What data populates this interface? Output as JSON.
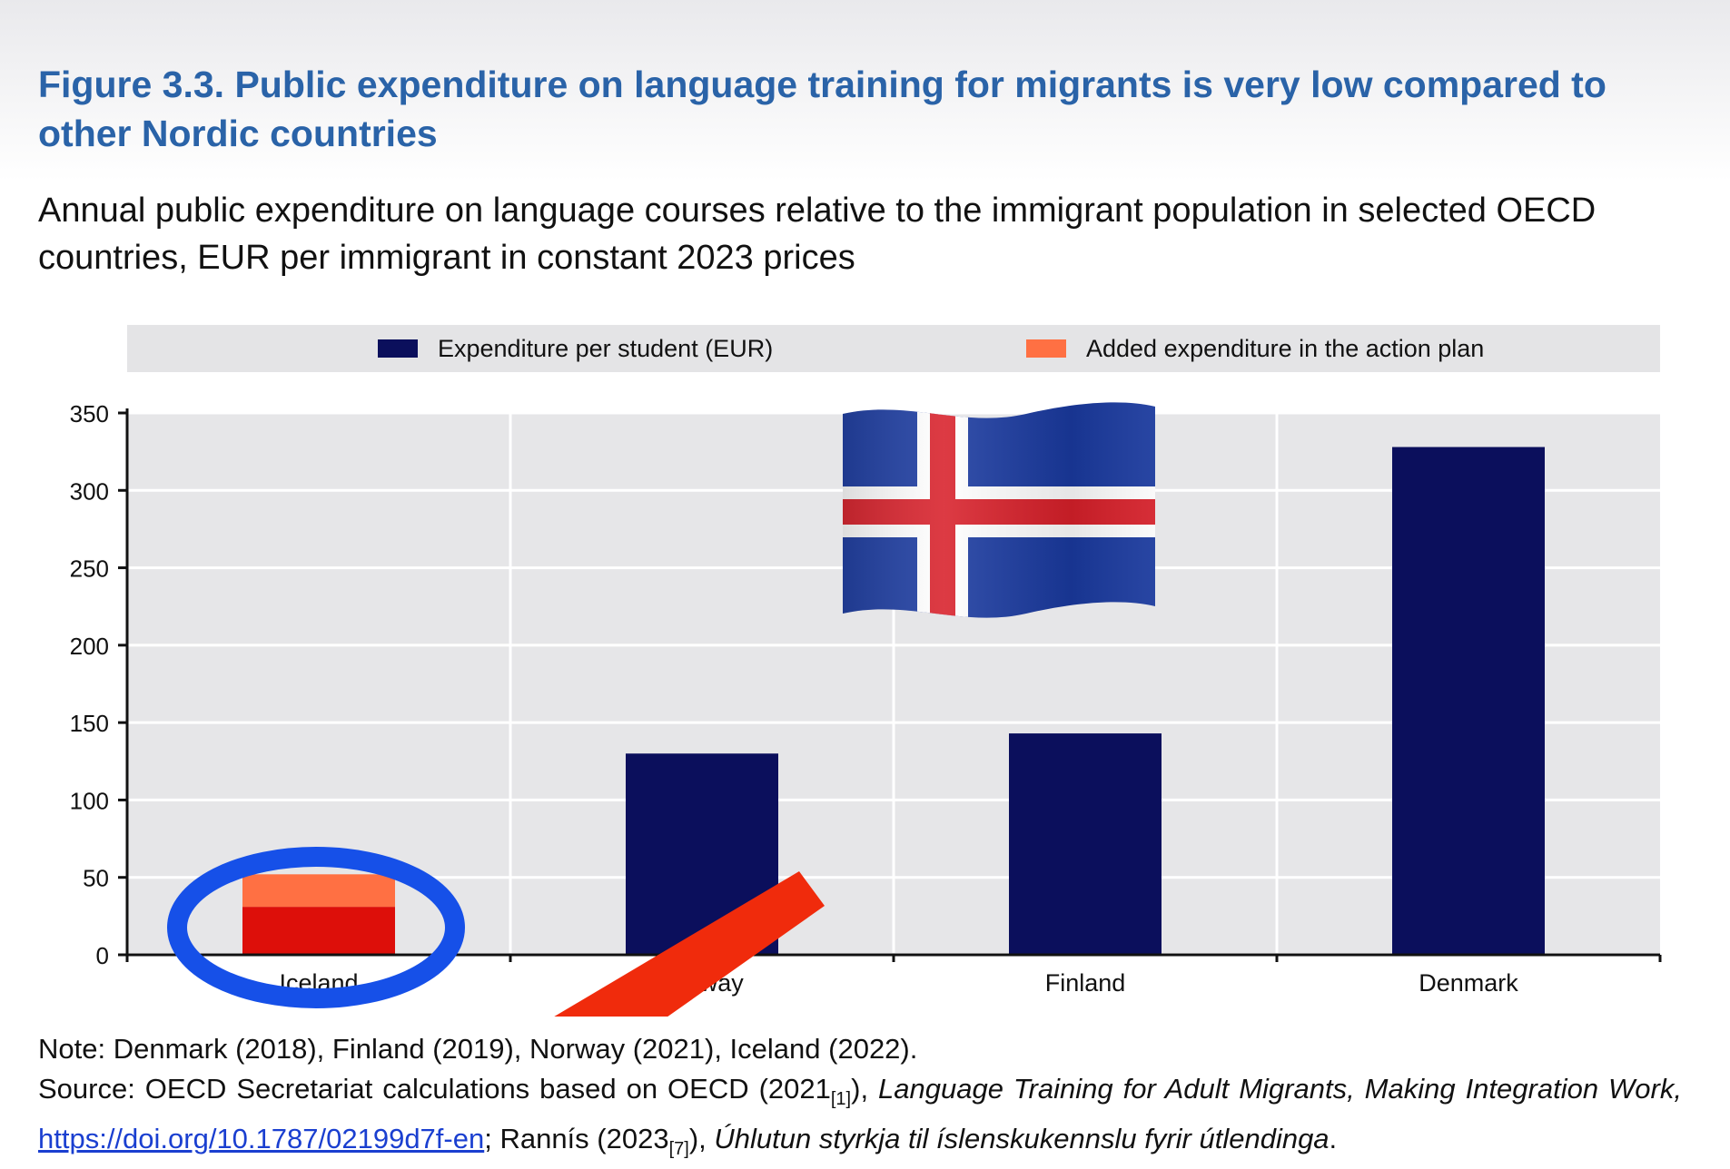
{
  "figure": {
    "title": "Figure 3.3. Public expenditure on language training for migrants is very low compared to other Nordic countries",
    "subtitle": "Annual public expenditure on language courses relative to the immigrant population in selected OECD countries, EUR per immigrant in constant 2023 prices"
  },
  "legend": [
    {
      "label": "Expenditure per student (EUR)",
      "color": "#0b0f5c"
    },
    {
      "label": "Added expenditure in the action plan",
      "color": "#ff7043"
    }
  ],
  "chart_data": {
    "type": "bar",
    "stacked": true,
    "categories": [
      "Iceland",
      "Norway",
      "Finland",
      "Denmark"
    ],
    "series": [
      {
        "name": "Expenditure per student (EUR)",
        "values": [
          31,
          130,
          143,
          328
        ],
        "colors": [
          "#dd0f0a",
          "#0b0f5c",
          "#0b0f5c",
          "#0b0f5c"
        ]
      },
      {
        "name": "Added expenditure in the action plan",
        "values": [
          21,
          0,
          0,
          0
        ],
        "colors": [
          "#ff7043",
          "#ff7043",
          "#ff7043",
          "#ff7043"
        ]
      }
    ],
    "yticks": [
      0,
      50,
      100,
      150,
      200,
      250,
      300,
      350
    ],
    "ylim": [
      0,
      350
    ],
    "grid": true,
    "legend_position": "top"
  },
  "annotations": {
    "arrow_color": "#f02b0c",
    "highlight_ellipse_color": "#1650e8",
    "flag_icon": "iceland-flag-icon"
  },
  "notes": {
    "note": "Note: Denmark (2018), Finland (2019), Norway (2021), Iceland (2022).",
    "source_prefix": "Source: OECD Secretariat calculations based on OECD (2021",
    "source_ref1": "[1]",
    "source_mid": "), ",
    "source_title1": "Language Training for Adult Migrants, Making Integration Work,",
    "source_link": "https://doi.org/10.1787/02199d7f-en",
    "source_rannis": "; Rannís (2023",
    "source_ref2": "[7]",
    "source_close": "), ",
    "source_title2": "Úhlutun styrkja til íslenskukennslu fyrir útlendinga",
    "source_end": "."
  }
}
